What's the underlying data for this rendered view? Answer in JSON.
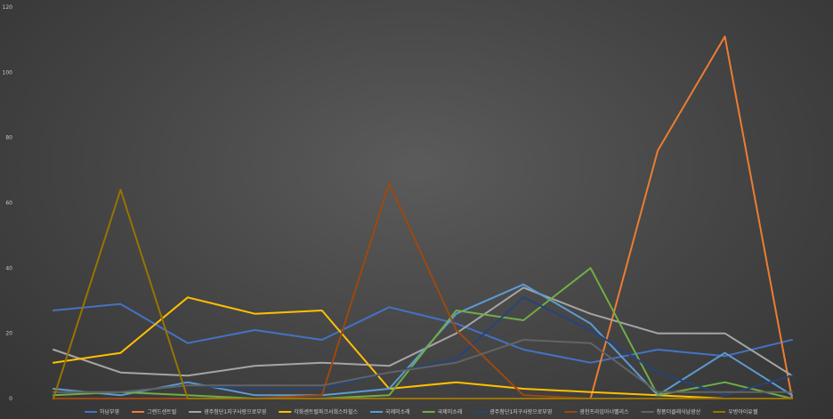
{
  "chart_data": {
    "type": "line",
    "title": "",
    "xlabel": "",
    "ylabel": "",
    "ylim": [
      0,
      120
    ],
    "yticks": [
      0,
      20,
      40,
      60,
      80,
      100,
      120
    ],
    "x_count": 12,
    "grid": false,
    "legend_position": "bottom",
    "series": [
      {
        "name": "하남부영",
        "color": "#4472c4",
        "values": [
          27,
          29,
          17,
          21,
          18,
          28,
          23,
          15,
          11,
          15,
          13,
          18
        ]
      },
      {
        "name": "그랜드센트럴",
        "color": "#ed7d31",
        "values": [
          0,
          0,
          0,
          0,
          0,
          0,
          0,
          0,
          0,
          76,
          111,
          0
        ]
      },
      {
        "name": "광주첨단1지구사랑으로부영",
        "color": "#a5a5a5",
        "values": [
          15,
          8,
          7,
          10,
          11,
          10,
          20,
          34,
          26,
          20,
          20,
          7
        ]
      },
      {
        "name": "각화센트럴파크서희스타힐스",
        "color": "#ffc000",
        "values": [
          11,
          14,
          31,
          26,
          27,
          3,
          5,
          3,
          2,
          1,
          0,
          0
        ]
      },
      {
        "name": "국제미소래",
        "color": "#5b9bd5",
        "values": [
          3,
          1,
          5,
          1,
          1,
          3,
          26,
          35,
          23,
          1,
          14,
          1
        ]
      },
      {
        "name": "국제미소래",
        "color": "#70ad47",
        "values": [
          1,
          2,
          1,
          0,
          0,
          1,
          27,
          24,
          40,
          1,
          5,
          0
        ]
      },
      {
        "name": "광주첨단1지구사랑으로부영",
        "color": "#264478",
        "values": [
          2,
          2,
          4,
          3,
          3,
          8,
          12,
          31,
          21,
          8,
          1,
          7
        ]
      },
      {
        "name": "광천프라임아너펠리스",
        "color": "#9e480e",
        "values": [
          0,
          0,
          0,
          0,
          1,
          66,
          21,
          1,
          0,
          0,
          0,
          0
        ]
      },
      {
        "name": "청풍더클래식남광산",
        "color": "#636363",
        "values": [
          2,
          2,
          4,
          4,
          4,
          8,
          11,
          18,
          17,
          2,
          2,
          2
        ]
      },
      {
        "name": "우방아이유쉘",
        "color": "#997300",
        "values": [
          0,
          64,
          0,
          0,
          0,
          0,
          0,
          0,
          0,
          0,
          0,
          0
        ]
      }
    ]
  }
}
